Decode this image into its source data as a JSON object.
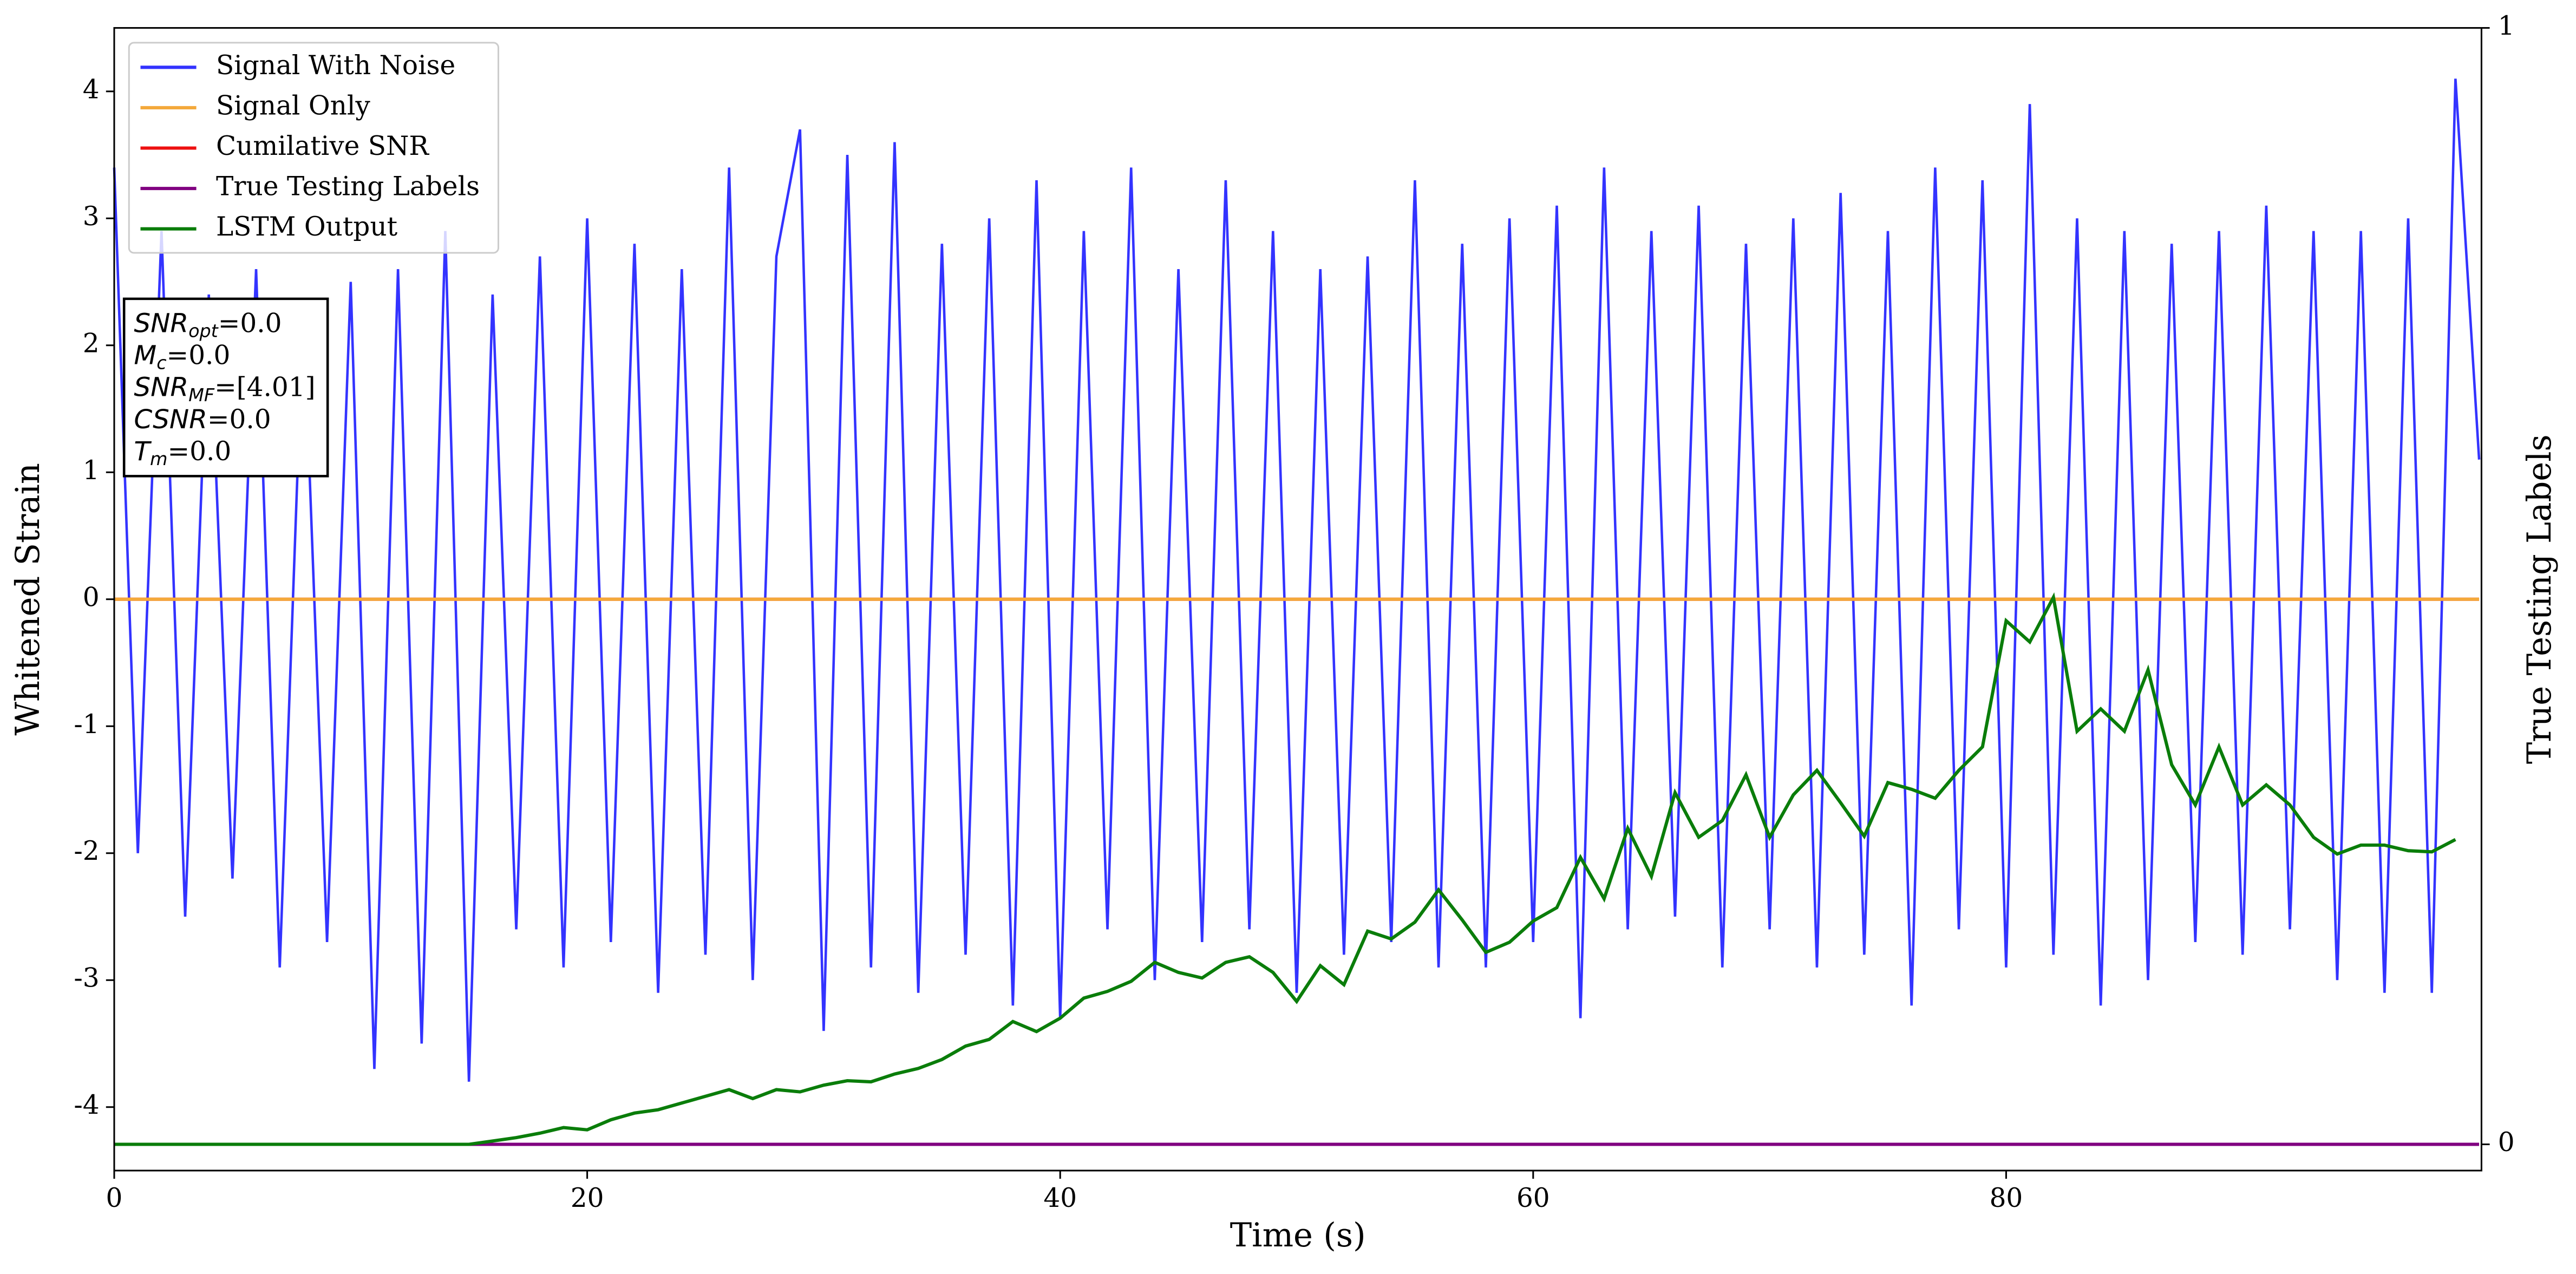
{
  "chart_data": {
    "type": "line",
    "xlabel": "Time (s)",
    "ylabel": "Whitened Strain",
    "y2label": "True Testing Labels",
    "xlim": [
      0,
      100.1
    ],
    "xticks": [
      0,
      20,
      40,
      60,
      80
    ],
    "ylim": [
      -4.5,
      4.5
    ],
    "yticks": [
      -4,
      -3,
      -2,
      -1,
      0,
      1,
      2,
      3,
      4
    ],
    "y2lim": [
      -0.0235,
      1
    ],
    "y2ticks": [
      0,
      1
    ],
    "legend": "upper left",
    "annotation": [
      {
        "base": "SNR",
        "sub": "opt",
        "text": "=0.0"
      },
      {
        "base": "M",
        "sub": "c",
        "text": "=0.0"
      },
      {
        "base": "SNR",
        "sub": "MF",
        "text": "=[4.01]"
      },
      {
        "base": "CSNR",
        "sub": null,
        "text": "=0.0"
      },
      {
        "base": "T",
        "sub": "m",
        "text": "=0.0"
      }
    ],
    "series": [
      {
        "name": "Signal With Noise",
        "color": "#3333ff",
        "axis": "y",
        "x": [
          0,
          1,
          2,
          3,
          4,
          5,
          6,
          7,
          8,
          9,
          10,
          11,
          12,
          13,
          14,
          15,
          16,
          17,
          18,
          19,
          20,
          21,
          22,
          23,
          24,
          25,
          26,
          27,
          28,
          29,
          30,
          31,
          32,
          33,
          34,
          35,
          36,
          37,
          38,
          39,
          40,
          41,
          42,
          43,
          44,
          45,
          46,
          47,
          48,
          49,
          50,
          51,
          52,
          53,
          54,
          55,
          56,
          57,
          58,
          59,
          60,
          61,
          62,
          63,
          64,
          65,
          66,
          67,
          68,
          69,
          70,
          71,
          72,
          73,
          74,
          75,
          76,
          77,
          78,
          79,
          80,
          81,
          82,
          83,
          84,
          85,
          86,
          87,
          88,
          89,
          90,
          91,
          92,
          93,
          94,
          95,
          96,
          97,
          98,
          99,
          100
        ],
        "values": [
          3.4,
          -2.0,
          2.9,
          -2.5,
          2.4,
          -2.2,
          2.6,
          -2.9,
          2.3,
          -2.7,
          2.5,
          -3.7,
          2.6,
          -3.5,
          2.9,
          -3.8,
          2.4,
          -2.6,
          2.7,
          -2.9,
          3.0,
          -2.7,
          2.8,
          -3.1,
          2.6,
          -2.8,
          3.4,
          -3.0,
          2.7,
          3.7,
          -3.4,
          3.5,
          -2.9,
          3.6,
          -3.1,
          2.8,
          -2.8,
          3.0,
          -3.2,
          3.3,
          -3.3,
          2.9,
          -2.6,
          3.4,
          -3.0,
          2.6,
          -2.7,
          3.3,
          -2.6,
          2.9,
          -3.1,
          2.6,
          -2.8,
          2.7,
          -2.7,
          3.3,
          -2.9,
          2.8,
          -2.9,
          3.0,
          -2.7,
          3.1,
          -3.3,
          3.4,
          -2.6,
          2.9,
          -2.5,
          3.1,
          -2.9,
          2.8,
          -2.6,
          3.0,
          -2.9,
          3.2,
          -2.8,
          2.9,
          -3.2,
          3.4,
          -2.6,
          3.3,
          -2.9,
          3.9,
          -2.8,
          3.0,
          -3.2,
          2.9,
          -3.0,
          2.8,
          -2.7,
          2.9,
          -2.8,
          3.1,
          -2.6,
          2.9,
          -3.0,
          2.9,
          -3.1,
          3.0,
          -3.1,
          4.1,
          1.1
        ]
      },
      {
        "name": "Signal Only",
        "color": "#f4a93b",
        "axis": "y",
        "x": [
          0,
          100
        ],
        "values": [
          0,
          0
        ]
      },
      {
        "name": "Cumilative SNR",
        "color": "#ee1111",
        "axis": "y",
        "x": [
          0,
          100
        ],
        "values": [
          0,
          0
        ]
      },
      {
        "name": "True Testing Labels",
        "color": "#800080",
        "axis": "y2",
        "x": [
          0,
          100
        ],
        "values": [
          0,
          0
        ]
      },
      {
        "name": "LSTM Output",
        "color": "#0a7d0a",
        "axis": "y2",
        "x": [
          0,
          1,
          2,
          3,
          4,
          5,
          6,
          7,
          8,
          9,
          10,
          11,
          12,
          13,
          14,
          15,
          16,
          17,
          18,
          19,
          20,
          21,
          22,
          23,
          24,
          25,
          26,
          27,
          28,
          29,
          30,
          31,
          32,
          33,
          34,
          35,
          36,
          37,
          38,
          39,
          40,
          41,
          42,
          43,
          44,
          45,
          46,
          47,
          48,
          49,
          50,
          51,
          52,
          53,
          54,
          55,
          56,
          57,
          58,
          59,
          60,
          61,
          62,
          63,
          64,
          65,
          66,
          67,
          68,
          69,
          70,
          71,
          72,
          73,
          74,
          75,
          76,
          77,
          78,
          79,
          80,
          81,
          82,
          83,
          84,
          85,
          86,
          87,
          88,
          89,
          90,
          91,
          92,
          93,
          94,
          95,
          96,
          97,
          98,
          99
        ],
        "values": [
          0,
          0,
          0,
          0,
          0,
          0,
          0,
          0,
          0,
          0,
          0,
          0,
          0,
          0,
          0,
          0,
          0.003,
          0.006,
          0.01,
          0.015,
          0.013,
          0.022,
          0.028,
          0.031,
          0.037,
          0.043,
          0.049,
          0.041,
          0.049,
          0.047,
          0.053,
          0.057,
          0.056,
          0.063,
          0.068,
          0.076,
          0.088,
          0.094,
          0.11,
          0.101,
          0.113,
          0.131,
          0.137,
          0.146,
          0.163,
          0.154,
          0.149,
          0.163,
          0.168,
          0.154,
          0.128,
          0.16,
          0.143,
          0.191,
          0.184,
          0.199,
          0.228,
          0.201,
          0.172,
          0.181,
          0.2,
          0.212,
          0.257,
          0.22,
          0.283,
          0.24,
          0.315,
          0.275,
          0.29,
          0.331,
          0.275,
          0.313,
          0.335,
          0.306,
          0.276,
          0.324,
          0.318,
          0.31,
          0.335,
          0.356,
          0.469,
          0.45,
          0.49,
          0.37,
          0.39,
          0.37,
          0.425,
          0.34,
          0.304,
          0.356,
          0.304,
          0.322,
          0.304,
          0.275,
          0.26,
          0.268,
          0.268,
          0.263,
          0.262,
          0.273
        ]
      }
    ]
  }
}
